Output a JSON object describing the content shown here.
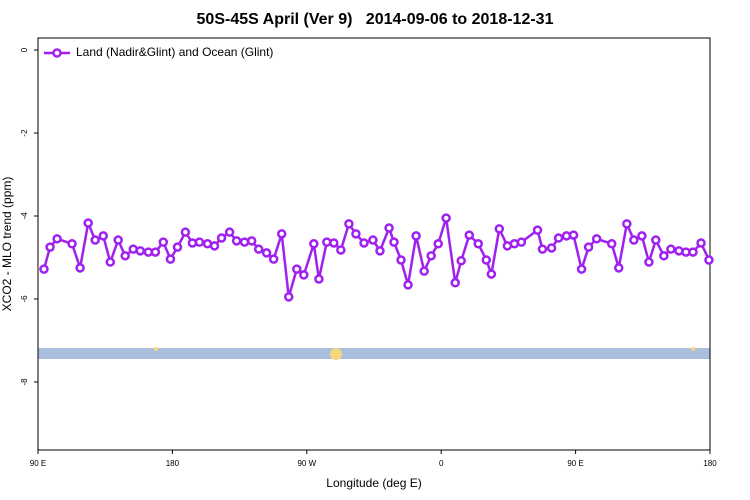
{
  "chart_data": {
    "type": "line",
    "title": "50S-45S April (Ver 9)   2014-09-06 to 2018-12-31",
    "xlabel": "Longitude (deg E)",
    "ylabel": "XCO2 - MLO trend (ppm)",
    "x": [
      94.0,
      98.1,
      102.8,
      112.8,
      118.2,
      123.6,
      128.3,
      133.7,
      138.4,
      143.7,
      148.4,
      153.8,
      158.5,
      163.9,
      168.6,
      173.9,
      178.7,
      183.4,
      188.7,
      193.4,
      198.1,
      203.5,
      208.2,
      212.9,
      218.3,
      223.0,
      228.3,
      233.1,
      237.8,
      243.1,
      247.8,
      253.2,
      257.9,
      263.3,
      268.0,
      274.7,
      278.1,
      283.4,
      288.1,
      292.8,
      298.2,
      302.9,
      308.3,
      314.3,
      319.0,
      325.1,
      328.4,
      333.1,
      337.8,
      343.2,
      348.6,
      353.3,
      358.0,
      363.3,
      369.4,
      373.4,
      378.8,
      384.8,
      390.2,
      393.6,
      398.9,
      404.3,
      409.0,
      413.7,
      424.5,
      427.8,
      433.9,
      438.6,
      443.9,
      448.6,
      454.0,
      458.7,
      464.1,
      474.2,
      478.9,
      484.3,
      489.0,
      494.4,
      499.1,
      503.7,
      509.1,
      513.8,
      519.2,
      523.9,
      528.6,
      534.0,
      539.3
    ],
    "series": [
      {
        "name": "Land (Nadir&Glint) and Ocean (Glint)",
        "color": "#a020f0",
        "values": [
          -5.28,
          -4.75,
          -4.55,
          -4.67,
          -5.25,
          -4.17,
          -4.58,
          -4.48,
          -5.11,
          -4.58,
          -4.96,
          -4.8,
          -4.84,
          -4.87,
          -4.87,
          -4.63,
          -5.04,
          -4.75,
          -4.39,
          -4.65,
          -4.63,
          -4.67,
          -4.72,
          -4.53,
          -4.39,
          -4.6,
          -4.63,
          -4.6,
          -4.8,
          -4.89,
          -5.04,
          -4.43,
          -5.95,
          -5.28,
          -5.42,
          -4.67,
          -5.52,
          -4.63,
          -4.65,
          -4.82,
          -4.19,
          -4.43,
          -4.65,
          -4.58,
          -4.84,
          -4.29,
          -4.63,
          -5.06,
          -5.66,
          -4.48,
          -5.33,
          -4.96,
          -4.67,
          -4.05,
          -5.61,
          -5.08,
          -4.46,
          -4.67,
          -5.06,
          -5.4,
          -4.31,
          -4.72,
          -4.67,
          -4.63,
          -4.34,
          -4.8,
          -4.77,
          -4.53,
          -4.48,
          -4.46,
          -5.28,
          -4.75,
          -4.55,
          -4.67,
          -5.25,
          -4.19,
          -4.58,
          -4.48,
          -5.11,
          -4.58,
          -4.96,
          -4.8,
          -4.84,
          -4.87,
          -4.87,
          -4.65,
          -5.06
        ]
      }
    ],
    "xlim": [
      90,
      540
    ],
    "xticks": [
      {
        "value": 90,
        "label": "90 E"
      },
      180,
      {
        "value": 270,
        "label": "90 W"
      },
      {
        "value": 360,
        "label": "0"
      },
      {
        "value": 450,
        "label": "90 E"
      },
      {
        "value": 540,
        "label": "180"
      }
    ],
    "ylim": [
      -9.64,
      0.29
    ],
    "yticks": [
      -8,
      -6,
      -4,
      -2,
      0
    ],
    "legend": "upper left",
    "grid": false
  }
}
